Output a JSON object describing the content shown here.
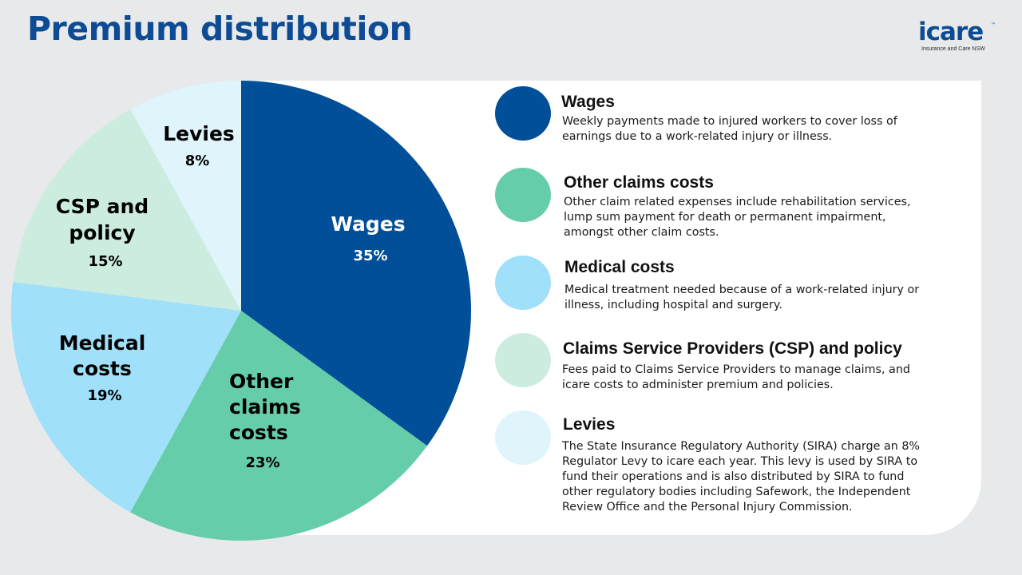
{
  "page": {
    "title": "Premium distribution"
  },
  "logo": {
    "brand": "icare",
    "trademark": "™",
    "tagline": "Insurance and Care NSW"
  },
  "chart_data": {
    "type": "pie",
    "slices": [
      {
        "name": "Wages",
        "label_lines": [
          "Wages"
        ],
        "value": 35,
        "value_label": "35%",
        "color": "#004f98",
        "label_color": "#ffffff"
      },
      {
        "name": "Other claims costs",
        "label_lines": [
          "Other",
          "claims",
          "costs"
        ],
        "value": 23,
        "value_label": "23%",
        "color": "#66cdaa",
        "label_color": "#000000"
      },
      {
        "name": "Medical costs",
        "label_lines": [
          "Medical",
          "costs"
        ],
        "value": 19,
        "value_label": "19%",
        "color": "#a0e0fa",
        "label_color": "#000000"
      },
      {
        "name": "CSP and policy",
        "label_lines": [
          "CSP and",
          "policy"
        ],
        "value": 15,
        "value_label": "15%",
        "color": "#cdece0",
        "label_color": "#000000"
      },
      {
        "name": "Levies",
        "label_lines": [
          "Levies"
        ],
        "value": 8,
        "value_label": "8%",
        "color": "#dff4fb",
        "label_color": "#000000"
      }
    ]
  },
  "legend": [
    {
      "title": "Wages",
      "color": "#004f98",
      "description": "Weekly payments made to injured workers to cover loss of earnings due to a work-related injury or illness."
    },
    {
      "title": "Other claims costs",
      "color": "#66cdaa",
      "description": "Other claim related expenses include rehabilitation services, lump sum payment for death or permanent impairment, amongst other claim costs."
    },
    {
      "title": "Medical costs",
      "color": "#a0e0fa",
      "description": "Medical treatment needed because of a work-related injury or illness, including hospital and surgery."
    },
    {
      "title": "Claims Service Providers (CSP) and policy",
      "color": "#cdece0",
      "description": "Fees paid to Claims Service Providers to manage claims, and icare costs to administer premium and policies."
    },
    {
      "title": "Levies",
      "color": "#dff4fb",
      "description": "The State Insurance Regulatory Authority (SIRA) charge an 8% Regulator Levy to icare each year. This levy is used by SIRA to fund their operations and is also distributed by SIRA to fund other regulatory bodies including Safework, the Independent Review Office and the Personal Injury Commission."
    }
  ]
}
